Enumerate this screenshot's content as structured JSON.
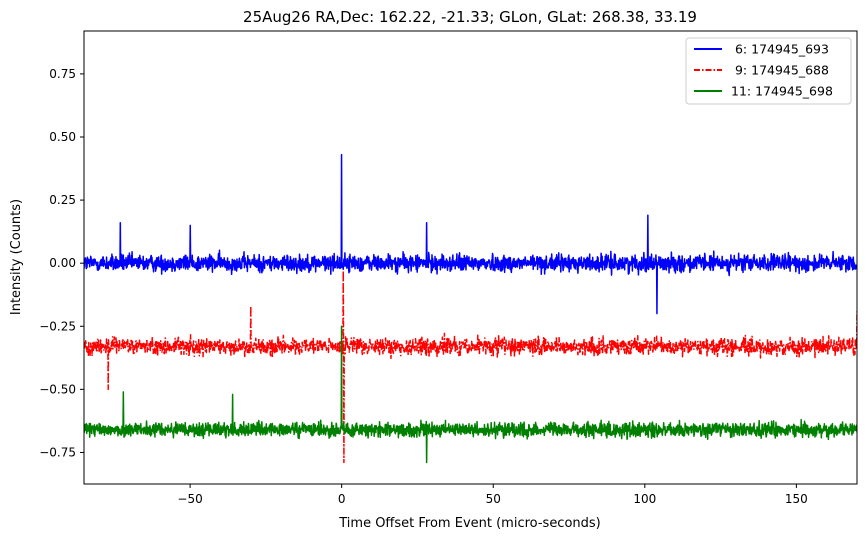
{
  "chart_data": {
    "type": "line",
    "title": "25Aug26 RA,Dec:  162.22, -21.33; GLon, GLat:  268.38,  33.19",
    "xlabel": "Time Offset From Event (micro-seconds)",
    "ylabel": "Intensity (Counts)",
    "xlim": [
      -85,
      170
    ],
    "ylim": [
      -0.875,
      0.92
    ],
    "xticks": [
      -50,
      0,
      50,
      100,
      150
    ],
    "xtick_labels": [
      "−50",
      "0",
      "50",
      "100",
      "150"
    ],
    "yticks": [
      -0.75,
      -0.5,
      -0.25,
      0.0,
      0.25,
      0.5,
      0.75
    ],
    "ytick_labels": [
      "−0.75",
      "−0.50",
      "−0.25",
      "0.00",
      "0.25",
      "0.50",
      "0.75"
    ],
    "legend_position": "top-right",
    "series": [
      {
        "name": " 6: 174945_693",
        "color": "#0000ff",
        "linestyle": "solid",
        "baseline": 0.0,
        "noise_amplitude": 0.06,
        "n_points": 2300,
        "spike": {
          "x": 0.0,
          "peak": 0.43
        },
        "notable_points": [
          [
            -73,
            0.16
          ],
          [
            -50,
            0.15
          ],
          [
            28,
            0.16
          ],
          [
            101,
            0.19
          ],
          [
            104,
            -0.2
          ]
        ]
      },
      {
        "name": " 9: 174945_688",
        "color": "#ff0000",
        "linestyle": "dashdot",
        "baseline": -0.33,
        "noise_amplitude": 0.06,
        "n_points": 2300,
        "spike": {
          "x": 0.5,
          "peak": -0.03,
          "trough": -0.79
        },
        "notable_points": [
          [
            -30,
            -0.17
          ],
          [
            -77,
            -0.5
          ],
          [
            170,
            -0.19
          ]
        ]
      },
      {
        "name": "11: 174945_698",
        "color": "#008000",
        "linestyle": "solid",
        "baseline": -0.66,
        "noise_amplitude": 0.05,
        "n_points": 2300,
        "spike": {
          "x": 0.0,
          "peak": -0.25
        },
        "notable_points": [
          [
            -72,
            -0.51
          ],
          [
            -36,
            -0.52
          ],
          [
            28,
            -0.79
          ]
        ]
      }
    ]
  }
}
